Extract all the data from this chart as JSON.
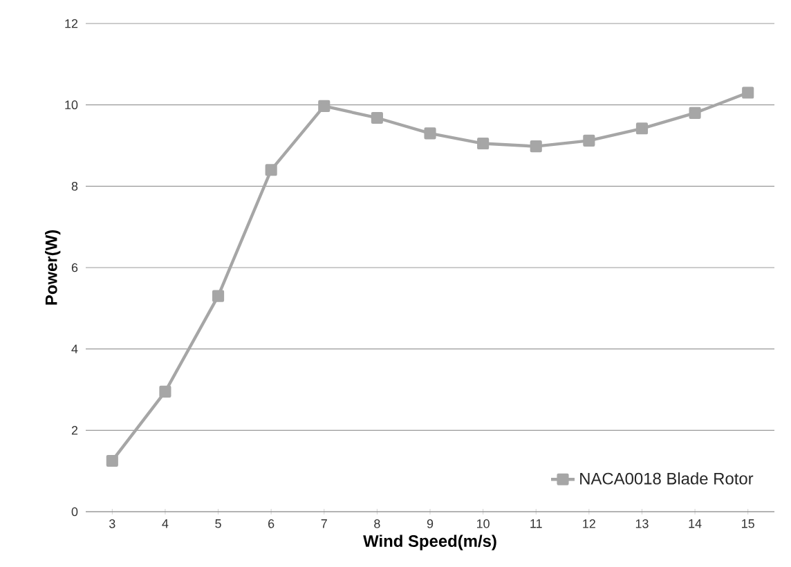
{
  "chart_data": {
    "type": "line",
    "xlabel": "Wind Speed(m/s)",
    "ylabel": "Power(W)",
    "categories": [
      "3",
      "4",
      "5",
      "6",
      "7",
      "8",
      "9",
      "10",
      "11",
      "12",
      "13",
      "14",
      "15"
    ],
    "series": [
      {
        "name": "NACA0018 Blade Rotor",
        "color": "#a6a6a6",
        "values": [
          1.25,
          2.95,
          5.3,
          8.4,
          9.97,
          9.68,
          9.3,
          9.05,
          8.98,
          9.12,
          9.42,
          9.8,
          10.3
        ]
      }
    ],
    "ylim": [
      0,
      12
    ],
    "yticks": [
      0,
      2,
      4,
      6,
      8,
      10,
      12
    ],
    "grid": "y",
    "legend": "bottom right",
    "marker": "square",
    "line_style": "solid"
  }
}
